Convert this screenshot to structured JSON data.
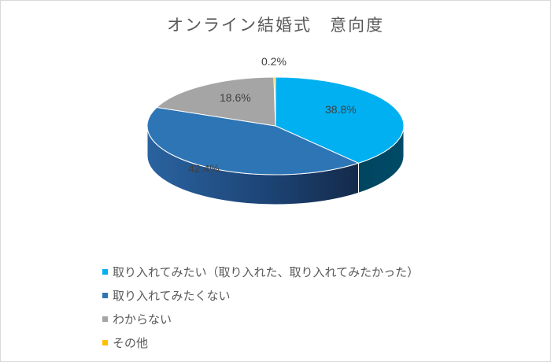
{
  "chart_data": {
    "type": "pie",
    "subtype": "3d-pie",
    "title": "オンライン結婚式　意向度",
    "categories": [
      "取り入れてみたい（取り入れた、取り入れてみたかった）",
      "取り入れてみたくない",
      "わからない",
      "その他"
    ],
    "values": [
      38.8,
      42.4,
      18.6,
      0.2
    ],
    "labels": [
      "38.8%",
      "42.4%",
      "18.6%",
      "0.2%"
    ],
    "colors": [
      "#00b0f0",
      "#2e75b6",
      "#a5a5a5",
      "#ffc000"
    ],
    "legend_position": "bottom"
  },
  "title": "オンライン結婚式　意向度",
  "legend": [
    {
      "label": "取り入れてみたい（取り入れた、取り入れてみたかった）",
      "color": "#00b0f0"
    },
    {
      "label": "取り入れてみたくない",
      "color": "#2e75b6"
    },
    {
      "label": "わからない",
      "color": "#a5a5a5"
    },
    {
      "label": "その他",
      "color": "#ffc000"
    }
  ],
  "data_labels": {
    "s1": "38.8%",
    "s2": "42.4%",
    "s3": "18.6%",
    "s4": "0.2%"
  }
}
